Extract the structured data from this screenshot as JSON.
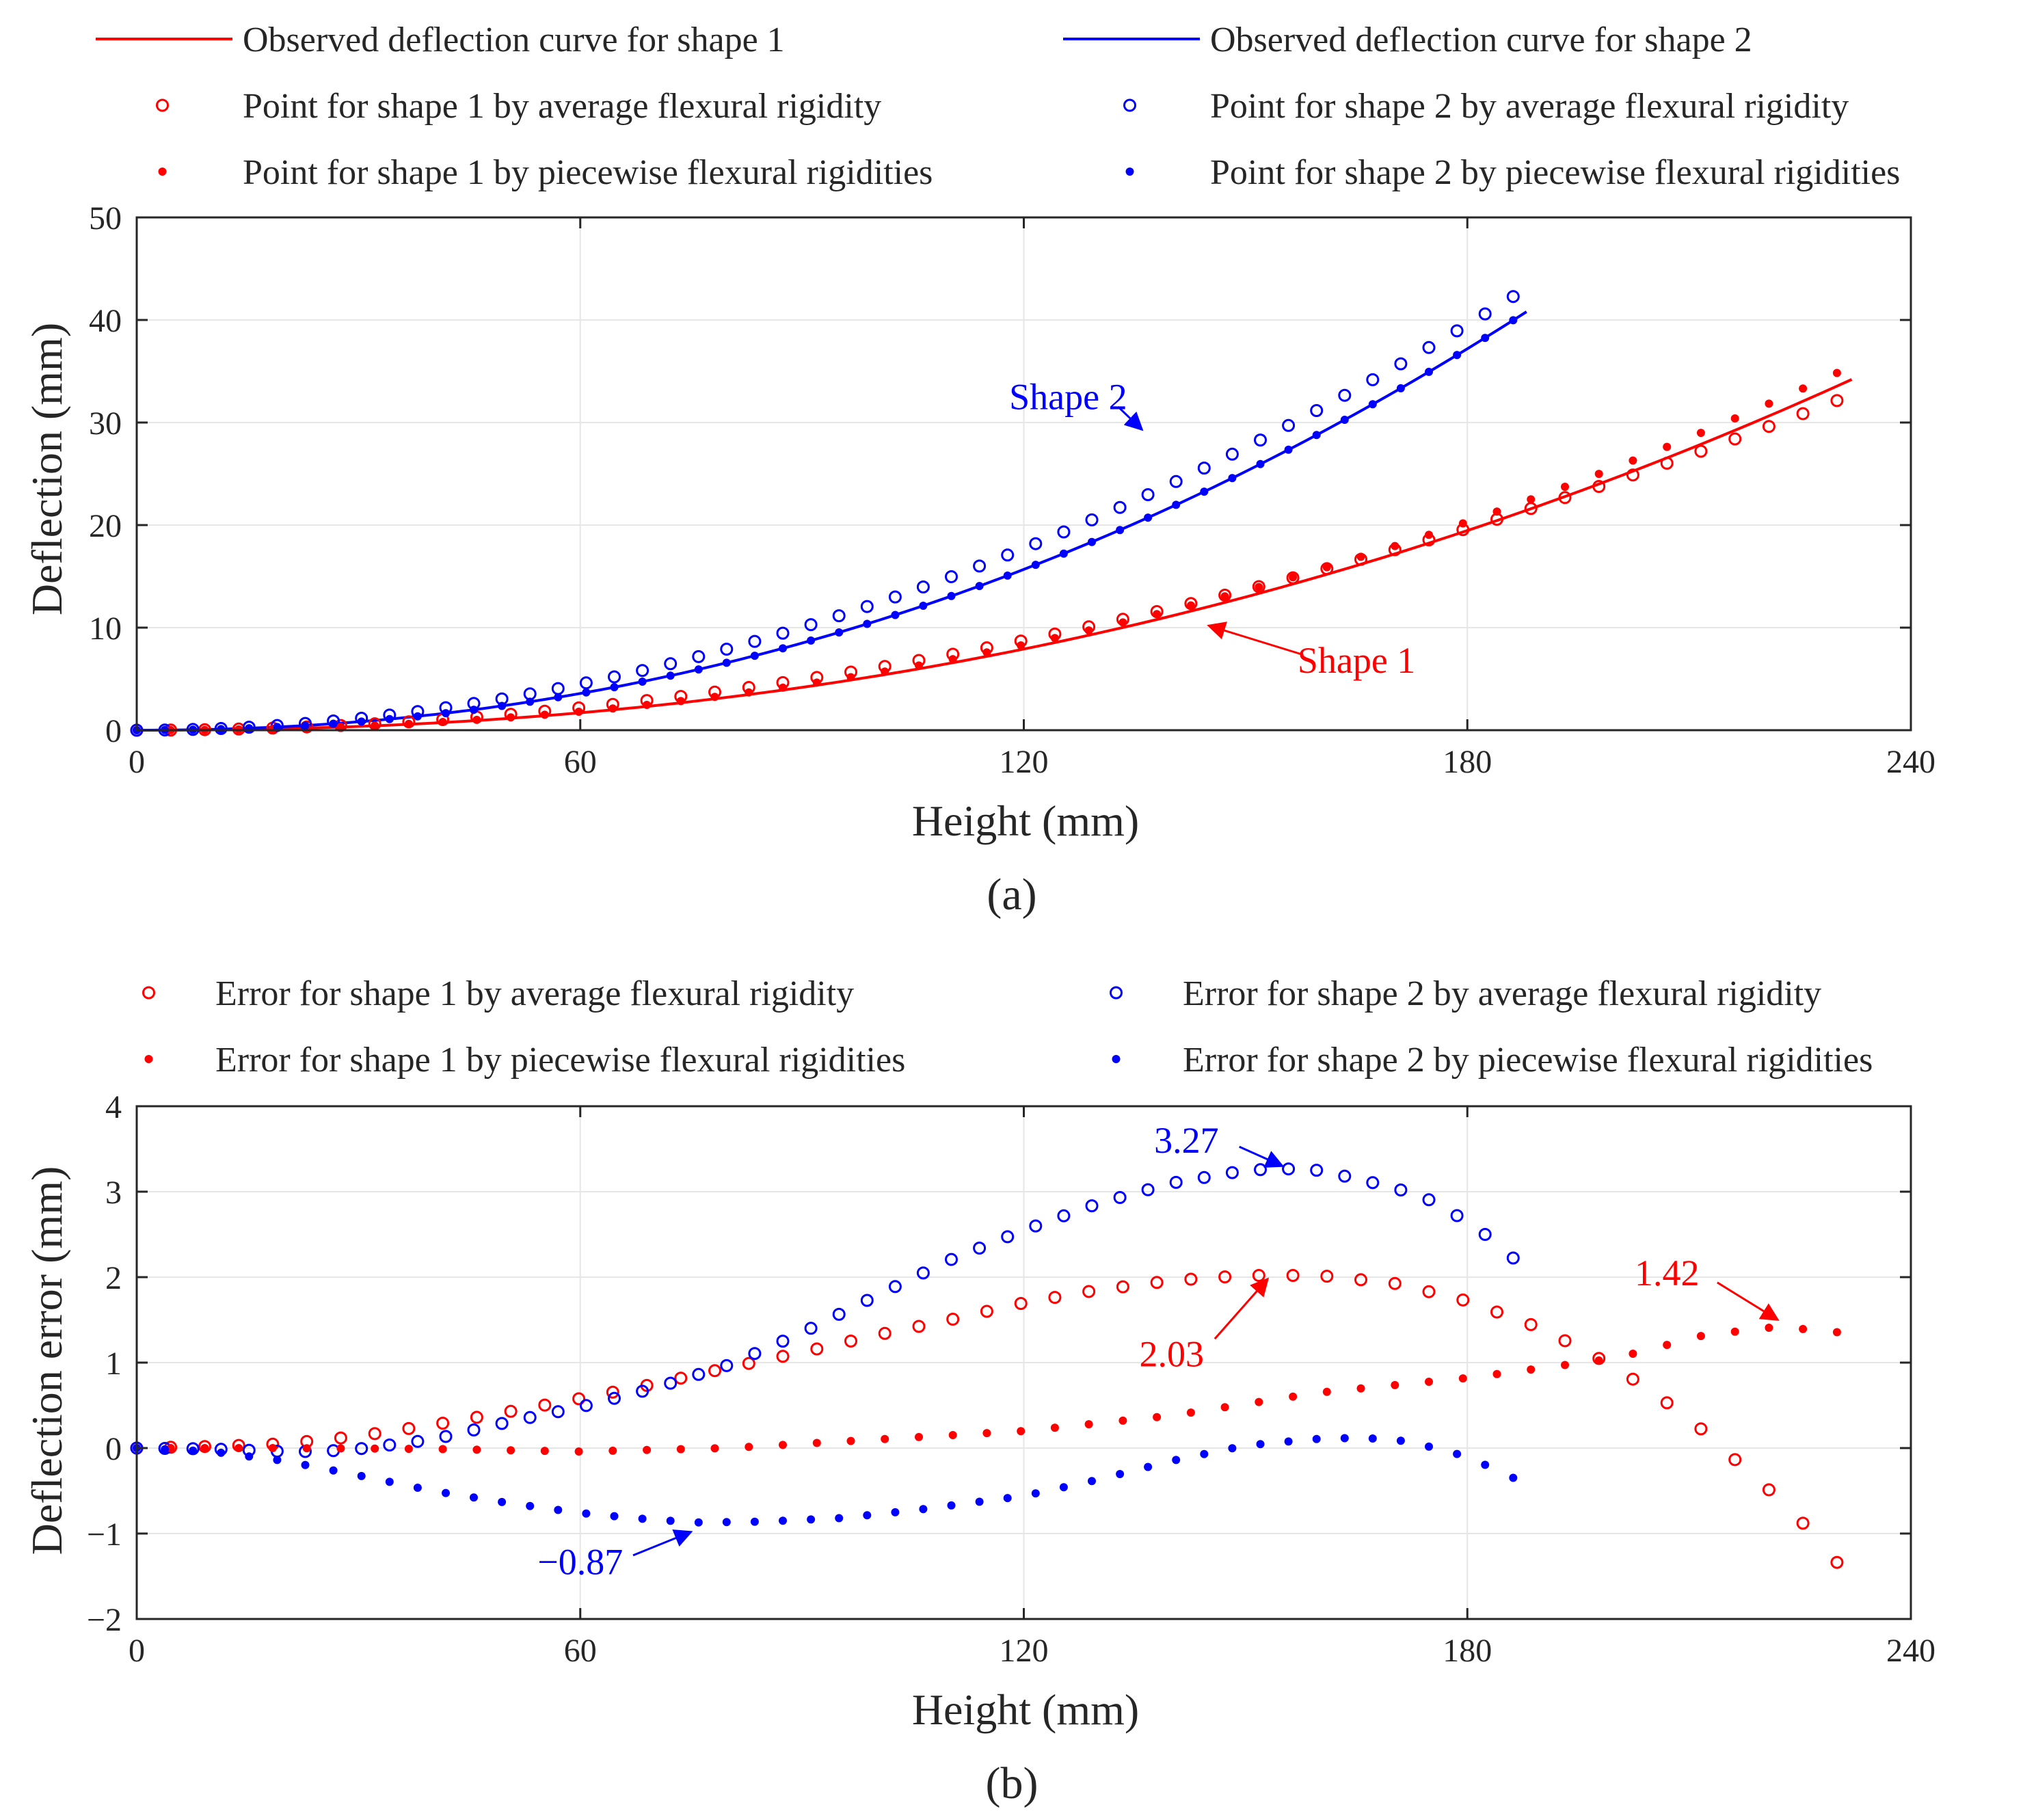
{
  "colors": {
    "red": "#ff0000",
    "blue": "#0000ff",
    "axis": "#262626",
    "grid": "#e6e6e6"
  },
  "chart_data": [
    {
      "type": "scatter",
      "panel_label": "(a)",
      "xlabel": "Height (mm)",
      "ylabel": "Deflection (mm)",
      "xlim": [
        0,
        240
      ],
      "ylim": [
        0,
        50
      ],
      "xticks": [
        "0",
        "60",
        "120",
        "180",
        "240"
      ],
      "yticks": [
        "0",
        "10",
        "20",
        "30",
        "40",
        "50"
      ],
      "grid": true,
      "legend_position": "top",
      "legend": [
        "Observed deflection curve for shape 1",
        "Observed deflection curve for shape 2",
        "Point for shape 1 by average flexural rigidity",
        "Point for shape 2 by average flexural rigidity",
        "Point for shape 1 by piecewise flexural rigidities",
        "Point for shape 2 by piecewise flexural rigidities"
      ],
      "series": [
        {
          "name": "Observed deflection curve for shape 1",
          "style": "line",
          "color": "red",
          "x_end": 232,
          "y_end": 34.2,
          "exponent": 2.22
        },
        {
          "name": "Observed deflection curve for shape 2",
          "style": "line",
          "color": "blue",
          "x_end": 188,
          "y_end": 40.8,
          "exponent": 2.13
        },
        {
          "name": "Point for shape 1 by average flexural rigidity",
          "style": "open",
          "color": "red",
          "x_end": 232,
          "y_end": 32.7,
          "exponent": 2.0,
          "step": 4.6
        },
        {
          "name": "Point for shape 2 by average flexural rigidity",
          "style": "open",
          "color": "blue",
          "x_end": 188,
          "y_end": 43.1,
          "exponent": 1.98,
          "step": 3.8
        },
        {
          "name": "Point for shape 1 by piecewise flexural rigidities",
          "style": "dot",
          "color": "red",
          "x_end": 232,
          "y_end": 35.5,
          "exponent": 2.2,
          "step": 4.6
        },
        {
          "name": "Point for shape 2 by piecewise flexural rigidities",
          "style": "dot",
          "color": "blue",
          "x_end": 188,
          "y_end": 40.8,
          "exponent": 2.13,
          "step": 3.8
        }
      ],
      "annotations": [
        {
          "text": "Shape 2",
          "color": "blue",
          "label_x": 126,
          "label_y": 32.5,
          "tip_x": 136,
          "tip_y": 29.3
        },
        {
          "text": "Shape 1",
          "color": "red",
          "label_x": 165,
          "label_y": 6.8,
          "tip_x": 145,
          "tip_y": 10.2
        }
      ]
    },
    {
      "type": "scatter",
      "panel_label": "(b)",
      "xlabel": "Height (mm)",
      "ylabel": "Deflection error (mm)",
      "xlim": [
        0,
        240
      ],
      "ylim": [
        -2,
        4
      ],
      "xticks": [
        "0",
        "60",
        "120",
        "180",
        "240"
      ],
      "yticks": [
        "-2",
        "-1",
        "0",
        "1",
        "2",
        "3",
        "4"
      ],
      "grid": true,
      "legend_position": "top",
      "legend": [
        "Error for shape 1 by average flexural rigidity",
        "Error for shape 2 by average flexural rigidity",
        "Error for shape 1 by piecewise flexural rigidities",
        "Error for shape 2 by piecewise flexural rigidities"
      ],
      "series": [
        {
          "name": "Error for shape 1 by average flexural rigidity",
          "style": "open",
          "color": "red",
          "step": 4.6,
          "x_end": 232,
          "profile": [
            [
              0,
              0
            ],
            [
              10,
              0.02
            ],
            [
              20,
              0.05
            ],
            [
              30,
              0.14
            ],
            [
              40,
              0.27
            ],
            [
              50,
              0.42
            ],
            [
              60,
              0.58
            ],
            [
              70,
              0.75
            ],
            [
              80,
              0.94
            ],
            [
              90,
              1.12
            ],
            [
              100,
              1.32
            ],
            [
              110,
              1.5
            ],
            [
              120,
              1.7
            ],
            [
              130,
              1.85
            ],
            [
              140,
              1.96
            ],
            [
              150,
              2.02
            ],
            [
              160,
              2.02
            ],
            [
              170,
              1.93
            ],
            [
              180,
              1.72
            ],
            [
              190,
              1.4
            ],
            [
              200,
              0.95
            ],
            [
              210,
              0.35
            ],
            [
              216,
              -0.12
            ],
            [
              222,
              -0.58
            ],
            [
              227,
              -1.02
            ],
            [
              232,
              -1.55
            ]
          ]
        },
        {
          "name": "Error for shape 2 by average flexural rigidity",
          "style": "open",
          "color": "blue",
          "step": 3.8,
          "x_end": 188,
          "profile": [
            [
              0,
              0
            ],
            [
              10,
              -0.01
            ],
            [
              20,
              -0.04
            ],
            [
              25,
              -0.04
            ],
            [
              30,
              -0.01
            ],
            [
              40,
              0.1
            ],
            [
              50,
              0.3
            ],
            [
              60,
              0.48
            ],
            [
              70,
              0.7
            ],
            [
              80,
              0.97
            ],
            [
              90,
              1.35
            ],
            [
              100,
              1.78
            ],
            [
              110,
              2.2
            ],
            [
              120,
              2.55
            ],
            [
              130,
              2.86
            ],
            [
              140,
              3.1
            ],
            [
              150,
              3.25
            ],
            [
              155,
              3.27
            ],
            [
              160,
              3.25
            ],
            [
              170,
              3.05
            ],
            [
              175,
              2.9
            ],
            [
              180,
              2.65
            ],
            [
              184,
              2.4
            ],
            [
              188,
              2.08
            ]
          ]
        },
        {
          "name": "Error for shape 1 by piecewise flexural rigidities",
          "style": "dot",
          "color": "red",
          "step": 4.6,
          "x_end": 232,
          "profile": [
            [
              0,
              0
            ],
            [
              20,
              0.0
            ],
            [
              40,
              -0.01
            ],
            [
              60,
              -0.04
            ],
            [
              80,
              0.0
            ],
            [
              100,
              0.1
            ],
            [
              120,
              0.2
            ],
            [
              140,
              0.38
            ],
            [
              160,
              0.65
            ],
            [
              180,
              0.82
            ],
            [
              200,
              1.05
            ],
            [
              212,
              1.32
            ],
            [
              222,
              1.42
            ],
            [
              232,
              1.34
            ]
          ]
        },
        {
          "name": "Error for shape 2 by piecewise flexural rigidities",
          "style": "dot",
          "color": "blue",
          "step": 3.8,
          "x_end": 188,
          "profile": [
            [
              0,
              0
            ],
            [
              10,
              -0.04
            ],
            [
              20,
              -0.15
            ],
            [
              30,
              -0.32
            ],
            [
              40,
              -0.5
            ],
            [
              50,
              -0.64
            ],
            [
              60,
              -0.76
            ],
            [
              70,
              -0.84
            ],
            [
              76,
              -0.87
            ],
            [
              85,
              -0.86
            ],
            [
              95,
              -0.82
            ],
            [
              105,
              -0.73
            ],
            [
              120,
              -0.56
            ],
            [
              130,
              -0.37
            ],
            [
              140,
              -0.15
            ],
            [
              150,
              0.03
            ],
            [
              160,
              0.11
            ],
            [
              166,
              0.12
            ],
            [
              172,
              0.08
            ],
            [
              180,
              -0.1
            ],
            [
              188,
              -0.42
            ]
          ]
        }
      ],
      "annotations": [
        {
          "text": "3.27",
          "color": "blue",
          "label_x": 142,
          "label_y": 3.6,
          "tip_x": 155,
          "tip_y": 3.3
        },
        {
          "text": "2.03",
          "color": "red",
          "label_x": 140,
          "label_y": 1.1,
          "tip_x": 153,
          "tip_y": 1.98
        },
        {
          "text": "1.42",
          "color": "red",
          "label_x": 207,
          "label_y": 2.05,
          "tip_x": 222,
          "tip_y": 1.5
        },
        {
          "text": "−0.87",
          "color": "blue",
          "label_x": 60,
          "label_y": -1.33,
          "tip_x": 75,
          "tip_y": -0.98
        }
      ]
    }
  ]
}
